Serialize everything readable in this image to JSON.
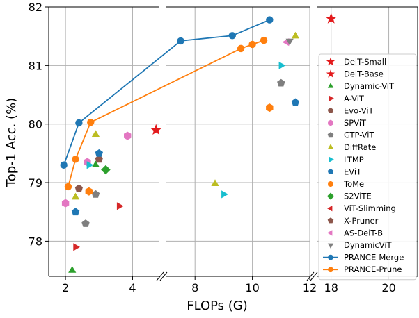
{
  "chart_data": {
    "type": "scatter",
    "xlabel": "FLOPs (G)",
    "ylabel": "Top-1 Acc. (%)",
    "ylim": [
      77.4,
      82.0
    ],
    "y_ticks": [
      "78",
      "79",
      "80",
      "81",
      "82"
    ],
    "grid": true,
    "legend_position": "right",
    "panels": [
      {
        "xlim": [
          1.5,
          4.8
        ],
        "x_ticks": [
          "2",
          "4"
        ]
      },
      {
        "xlim": [
          7.0,
          12.0
        ],
        "x_ticks": [
          "8",
          "10",
          "12"
        ]
      },
      {
        "xlim": [
          17.5,
          21.0
        ],
        "x_ticks": [
          "18",
          "20"
        ]
      }
    ],
    "series": [
      {
        "name": "DeiT-Small",
        "marker": "star",
        "color": "#e31a1c",
        "points": [
          [
            4.7,
            79.9
          ]
        ]
      },
      {
        "name": "DeiT-Base",
        "marker": "star",
        "color": "#e31a1c",
        "points": [
          [
            18.0,
            81.8
          ]
        ]
      },
      {
        "name": "Dynamic-ViT",
        "marker": "triangle-up",
        "color": "#2ca02c",
        "points": [
          [
            2.2,
            77.5
          ],
          [
            2.9,
            79.3
          ]
        ]
      },
      {
        "name": "A-ViT",
        "marker": "triangle-right",
        "color": "#d62728",
        "points": [
          [
            3.6,
            78.6
          ],
          [
            2.3,
            77.9
          ]
        ]
      },
      {
        "name": "Evo-ViT",
        "marker": "pentagon",
        "color": "#8c564b",
        "points": [
          [
            2.4,
            78.9
          ],
          [
            3.0,
            79.4
          ]
        ]
      },
      {
        "name": "SPViT",
        "marker": "hexagon",
        "color": "#e377c2",
        "points": [
          [
            2.0,
            78.65
          ],
          [
            2.65,
            79.35
          ],
          [
            3.85,
            79.8
          ]
        ]
      },
      {
        "name": "GTP-ViT",
        "marker": "pentagon",
        "color": "#7f7f7f",
        "points": [
          [
            2.6,
            78.3
          ],
          [
            2.9,
            78.8
          ],
          [
            11.0,
            80.7
          ]
        ]
      },
      {
        "name": "DiffRate",
        "marker": "triangle-up",
        "color": "#bcbd22",
        "points": [
          [
            2.3,
            78.75
          ],
          [
            2.9,
            79.82
          ],
          [
            8.7,
            78.98
          ],
          [
            11.5,
            81.5
          ]
        ]
      },
      {
        "name": "LTMP",
        "marker": "triangle-right",
        "color": "#17becf",
        "points": [
          [
            2.7,
            79.3
          ],
          [
            9.0,
            78.8
          ],
          [
            11.0,
            81.0
          ]
        ]
      },
      {
        "name": "EViT",
        "marker": "pentagon",
        "color": "#1f77b4",
        "points": [
          [
            2.3,
            78.5
          ],
          [
            3.0,
            79.5
          ],
          [
            11.5,
            80.37
          ]
        ]
      },
      {
        "name": "ToMe",
        "marker": "hexagon",
        "color": "#ff7f0e",
        "points": [
          [
            2.7,
            78.85
          ],
          [
            10.6,
            80.28
          ]
        ]
      },
      {
        "name": "S2ViTE",
        "marker": "diamond",
        "color": "#2ca02c",
        "points": [
          [
            3.2,
            79.22
          ]
        ]
      },
      {
        "name": "ViT-Slimming",
        "marker": "triangle-left",
        "color": "#d62728",
        "points": []
      },
      {
        "name": "X-Pruner",
        "marker": "pentagon",
        "color": "#8c564b",
        "points": []
      },
      {
        "name": "AS-DeiT-B",
        "marker": "triangle-left",
        "color": "#e377c2",
        "points": [
          [
            11.2,
            81.4
          ]
        ]
      },
      {
        "name": "DynamicViT",
        "marker": "triangle-down",
        "color": "#7f7f7f",
        "points": [
          [
            11.3,
            81.42
          ]
        ]
      },
      {
        "name": "PRANCE-Merge",
        "marker": "circle",
        "color": "#1f77b4",
        "line": true,
        "points": [
          [
            1.95,
            79.3
          ],
          [
            2.4,
            80.02
          ],
          [
            7.5,
            81.42
          ],
          [
            9.3,
            81.51
          ],
          [
            10.6,
            81.78
          ]
        ]
      },
      {
        "name": "PRANCE-Prune",
        "marker": "circle",
        "color": "#ff7f0e",
        "line": true,
        "points": [
          [
            2.08,
            78.93
          ],
          [
            2.3,
            79.4
          ],
          [
            2.75,
            80.03
          ],
          [
            9.6,
            81.29
          ],
          [
            10.0,
            81.36
          ],
          [
            10.4,
            81.43
          ]
        ]
      }
    ]
  }
}
